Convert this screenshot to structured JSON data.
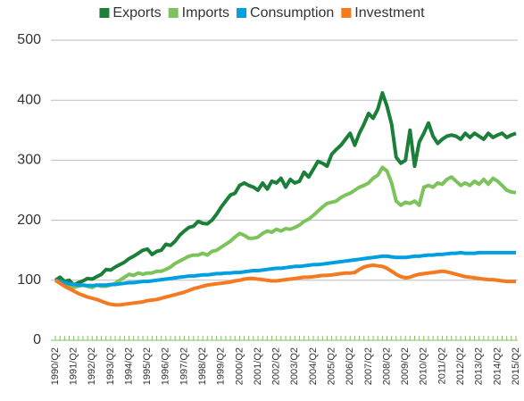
{
  "chart_data": {
    "type": "line",
    "categories": [
      "1990/Q2",
      null,
      null,
      null,
      "1991/Q2",
      null,
      null,
      null,
      "1992/Q2",
      null,
      null,
      null,
      "1993/Q2",
      null,
      null,
      null,
      "1994/Q2",
      null,
      null,
      null,
      "1995/Q2",
      null,
      null,
      null,
      "1996/Q2",
      null,
      null,
      null,
      "1997/Q2",
      null,
      null,
      null,
      "1998/Q2",
      null,
      null,
      null,
      "1999/Q2",
      null,
      null,
      null,
      "2000/Q2",
      null,
      null,
      null,
      "2001/Q2",
      null,
      null,
      null,
      "2002/Q2",
      null,
      null,
      null,
      "2003/Q2",
      null,
      null,
      null,
      "2004/Q2",
      null,
      null,
      null,
      "2005/Q2",
      null,
      null,
      null,
      "2006/Q2",
      null,
      null,
      null,
      "2007/Q2",
      null,
      null,
      null,
      "2008/Q2",
      null,
      null,
      null,
      "2009/Q2",
      null,
      null,
      null,
      "2010/Q2",
      null,
      null,
      null,
      "2011/Q2",
      null,
      null,
      null,
      "2012/Q2",
      null,
      null,
      null,
      "2013/Q2",
      null,
      null,
      null,
      "2014/Q2",
      null,
      null,
      null,
      "2015/Q2"
    ],
    "series": [
      {
        "name": "Exports",
        "color": "#1b7f3a",
        "values": [
          100,
          105,
          98,
          100,
          92,
          96,
          99,
          103,
          102,
          106,
          110,
          118,
          117,
          122,
          126,
          130,
          136,
          140,
          145,
          150,
          152,
          143,
          148,
          150,
          160,
          158,
          165,
          175,
          182,
          188,
          190,
          198,
          195,
          194,
          200,
          210,
          222,
          232,
          242,
          245,
          258,
          262,
          258,
          255,
          250,
          262,
          252,
          265,
          262,
          270,
          255,
          268,
          262,
          265,
          280,
          272,
          285,
          298,
          295,
          290,
          310,
          318,
          325,
          335,
          345,
          325,
          345,
          360,
          378,
          370,
          385,
          412,
          390,
          360,
          305,
          295,
          300,
          350,
          290,
          330,
          345,
          362,
          340,
          328,
          335,
          340,
          342,
          340,
          335,
          345,
          338,
          345,
          340,
          335,
          345,
          338,
          342,
          345,
          338,
          342,
          345
        ]
      },
      {
        "name": "Imports",
        "color": "#7dc35b",
        "values": [
          100,
          97,
          93,
          90,
          88,
          90,
          92,
          90,
          88,
          92,
          90,
          90,
          92,
          95,
          100,
          105,
          110,
          108,
          112,
          110,
          112,
          112,
          115,
          115,
          118,
          122,
          128,
          132,
          136,
          140,
          142,
          142,
          145,
          142,
          148,
          150,
          155,
          160,
          165,
          172,
          178,
          175,
          170,
          170,
          172,
          178,
          182,
          180,
          185,
          182,
          186,
          185,
          188,
          192,
          198,
          202,
          208,
          215,
          222,
          228,
          230,
          232,
          238,
          242,
          245,
          250,
          255,
          258,
          262,
          270,
          275,
          288,
          282,
          262,
          232,
          225,
          230,
          228,
          232,
          225,
          255,
          258,
          255,
          262,
          260,
          268,
          272,
          265,
          258,
          262,
          258,
          265,
          260,
          268,
          260,
          270,
          265,
          258,
          250,
          247,
          246
        ]
      },
      {
        "name": "Consumption",
        "color": "#00a0e0",
        "values": [
          100,
          98,
          96,
          94,
          93,
          92,
          92,
          91,
          91,
          92,
          92,
          92,
          93,
          93,
          94,
          95,
          96,
          96,
          97,
          98,
          98,
          99,
          100,
          101,
          102,
          103,
          104,
          105,
          106,
          107,
          107,
          108,
          109,
          109,
          110,
          111,
          111,
          112,
          112,
          113,
          113,
          114,
          115,
          116,
          116,
          117,
          118,
          119,
          120,
          120,
          121,
          122,
          123,
          123,
          124,
          125,
          126,
          126,
          127,
          128,
          129,
          130,
          131,
          132,
          133,
          134,
          135,
          136,
          137,
          138,
          139,
          140,
          140,
          139,
          138,
          138,
          138,
          139,
          140,
          140,
          141,
          142,
          142,
          143,
          143,
          144,
          145,
          145,
          146,
          145,
          145,
          145,
          146,
          146,
          146,
          146,
          146,
          146,
          146,
          146,
          146
        ]
      },
      {
        "name": "Investment",
        "color": "#f47920",
        "values": [
          100,
          95,
          90,
          86,
          82,
          78,
          75,
          72,
          70,
          68,
          65,
          62,
          60,
          59,
          59,
          60,
          61,
          62,
          63,
          64,
          66,
          67,
          68,
          70,
          72,
          74,
          76,
          78,
          80,
          83,
          86,
          88,
          90,
          92,
          93,
          94,
          95,
          96,
          97,
          99,
          100,
          102,
          103,
          103,
          102,
          101,
          100,
          99,
          99,
          100,
          101,
          102,
          103,
          104,
          105,
          105,
          106,
          107,
          108,
          108,
          109,
          110,
          111,
          112,
          112,
          113,
          118,
          122,
          124,
          125,
          124,
          123,
          120,
          115,
          110,
          106,
          104,
          105,
          108,
          110,
          111,
          112,
          113,
          114,
          115,
          114,
          112,
          110,
          108,
          106,
          105,
          104,
          103,
          102,
          101,
          101,
          100,
          99,
          98,
          98,
          98
        ]
      }
    ],
    "ylim": [
      0,
      500
    ],
    "yticks": [
      0,
      100,
      200,
      300,
      400,
      500
    ],
    "grid": true,
    "legend": "top"
  }
}
